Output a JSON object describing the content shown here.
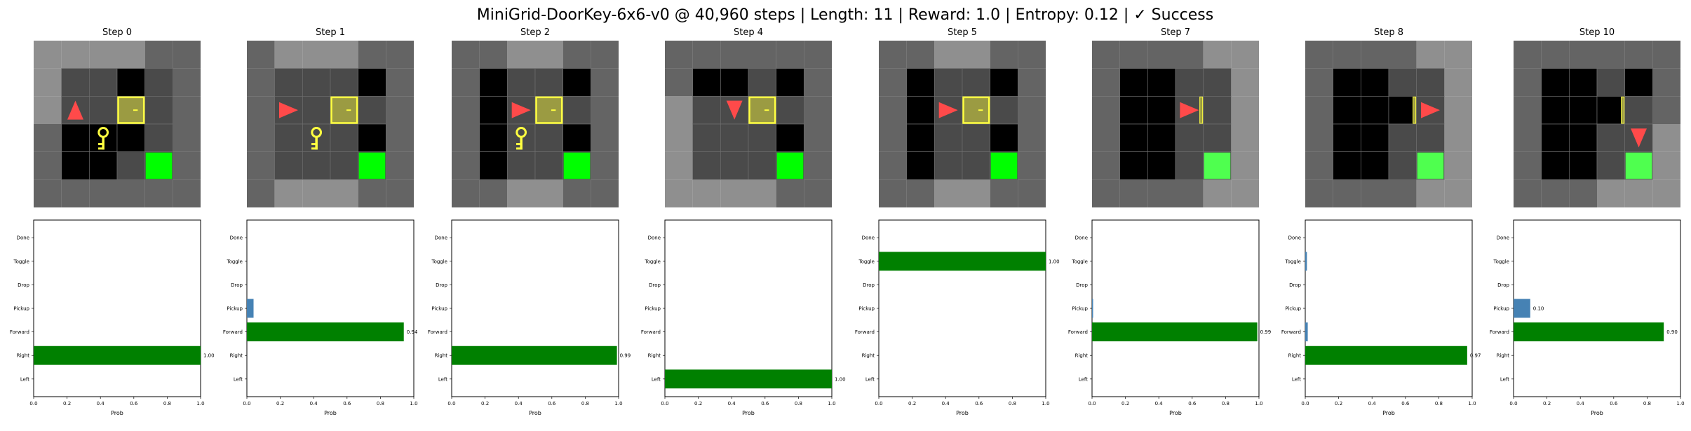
{
  "figure": {
    "title": "MiniGrid-DoorKey-6x6-v0 @ 40,960 steps | Length: 11 | Reward: 1.0 | Entropy: 0.12 | ✓ Success"
  },
  "colors": {
    "wall": "#646464",
    "floor_visible": "#8f8f8f",
    "floor_dark": "#000000",
    "floor_tile": "#4a4a4a",
    "goal": "#00ff00",
    "goal_dim": "#4fff4f",
    "door": "#9b9b42",
    "door_border": "#ffff40",
    "key": "#ffff40",
    "agent": "#ff4a4a",
    "chosen_bar": "#008000",
    "other_bar": "#4682b4"
  },
  "chart_data": [
    {
      "type": "bar",
      "orientation": "horizontal",
      "panel_title": "Step 0",
      "categories": [
        "Left",
        "Right",
        "Forward",
        "Pickup",
        "Drop",
        "Toggle",
        "Done"
      ],
      "values": [
        0,
        1.0,
        0,
        0,
        0,
        0,
        0
      ],
      "chosen": "Right",
      "value_labels": [
        {
          "category": "Right",
          "text": "1.00"
        }
      ],
      "xlabel": "Prob",
      "xlim": [
        0,
        1
      ],
      "xticks": [
        "0.0",
        "0.2",
        "0.4",
        "0.6",
        "0.8",
        "1.0"
      ],
      "grid": {
        "walls": [
          [
            0,
            0
          ],
          [
            1,
            0
          ],
          [
            2,
            0
          ],
          [
            3,
            0
          ],
          [
            4,
            0
          ],
          [
            5,
            0
          ],
          [
            0,
            1
          ],
          [
            5,
            1
          ],
          [
            0,
            2
          ],
          [
            5,
            2
          ],
          [
            0,
            3
          ],
          [
            5,
            3
          ],
          [
            0,
            4
          ],
          [
            5,
            4
          ],
          [
            0,
            5
          ],
          [
            1,
            5
          ],
          [
            2,
            5
          ],
          [
            3,
            5
          ],
          [
            4,
            5
          ],
          [
            5,
            5
          ]
        ],
        "dark": [
          [
            3,
            1
          ],
          [
            3,
            3
          ],
          [
            1,
            3
          ],
          [
            2,
            3
          ],
          [
            1,
            4
          ],
          [
            2,
            4
          ]
        ],
        "visible": [
          [
            0,
            0
          ],
          [
            1,
            0
          ],
          [
            2,
            0
          ],
          [
            3,
            0
          ],
          [
            0,
            1
          ],
          [
            1,
            1
          ],
          [
            2,
            1
          ],
          [
            3,
            1
          ],
          [
            0,
            2
          ],
          [
            1,
            2
          ],
          [
            2,
            2
          ],
          [
            3,
            2
          ],
          [
            4,
            2
          ]
        ],
        "door": [
          3,
          2
        ],
        "key": [
          2,
          3
        ],
        "goal": [
          4,
          4
        ],
        "agent": {
          "cell": [
            1,
            2
          ],
          "dir": "up"
        }
      }
    },
    {
      "type": "bar",
      "orientation": "horizontal",
      "panel_title": "Step 1",
      "categories": [
        "Left",
        "Right",
        "Forward",
        "Pickup",
        "Drop",
        "Toggle",
        "Done"
      ],
      "values": [
        0,
        0,
        0.94,
        0.04,
        0,
        0,
        0
      ],
      "chosen": "Forward",
      "value_labels": [
        {
          "category": "Forward",
          "text": "0.94"
        }
      ],
      "xlabel": "Prob",
      "xlim": [
        0,
        1
      ],
      "xticks": [
        "0.0",
        "0.2",
        "0.4",
        "0.6",
        "0.8",
        "1.0"
      ],
      "grid": {
        "dark": [
          [
            4,
            1
          ],
          [
            4,
            3
          ]
        ],
        "visible": [
          [
            1,
            0
          ],
          [
            2,
            0
          ],
          [
            3,
            0
          ],
          [
            1,
            1
          ],
          [
            2,
            1
          ],
          [
            3,
            1
          ],
          [
            1,
            2
          ],
          [
            2,
            2
          ],
          [
            3,
            2
          ],
          [
            4,
            2
          ],
          [
            1,
            3
          ],
          [
            2,
            3
          ],
          [
            3,
            3
          ],
          [
            1,
            4
          ],
          [
            2,
            4
          ],
          [
            3,
            4
          ],
          [
            1,
            5
          ],
          [
            2,
            5
          ],
          [
            3,
            5
          ]
        ],
        "door": [
          3,
          2
        ],
        "key": [
          2,
          3
        ],
        "goal": [
          4,
          4
        ],
        "agent": {
          "cell": [
            1,
            2
          ],
          "dir": "right"
        }
      }
    },
    {
      "type": "bar",
      "orientation": "horizontal",
      "panel_title": "Step 2",
      "categories": [
        "Left",
        "Right",
        "Forward",
        "Pickup",
        "Drop",
        "Toggle",
        "Done"
      ],
      "values": [
        0,
        0.99,
        0,
        0,
        0,
        0,
        0
      ],
      "chosen": "Right",
      "value_labels": [
        {
          "category": "Right",
          "text": "0.99"
        }
      ],
      "xlabel": "Prob",
      "xlim": [
        0,
        1
      ],
      "xticks": [
        "0.0",
        "0.2",
        "0.4",
        "0.6",
        "0.8",
        "1.0"
      ],
      "grid": {
        "dark": [
          [
            1,
            1
          ],
          [
            1,
            2
          ],
          [
            1,
            3
          ],
          [
            1,
            4
          ],
          [
            4,
            1
          ],
          [
            4,
            3
          ]
        ],
        "visible": [
          [
            2,
            0
          ],
          [
            3,
            0
          ],
          [
            2,
            1
          ],
          [
            3,
            1
          ],
          [
            2,
            2
          ],
          [
            3,
            2
          ],
          [
            4,
            2
          ],
          [
            2,
            3
          ],
          [
            3,
            3
          ],
          [
            2,
            4
          ],
          [
            3,
            4
          ],
          [
            2,
            5
          ],
          [
            3,
            5
          ]
        ],
        "door": [
          3,
          2
        ],
        "key": [
          2,
          3
        ],
        "goal": [
          4,
          4
        ],
        "agent": {
          "cell": [
            2,
            2
          ],
          "dir": "right"
        }
      }
    },
    {
      "type": "bar",
      "orientation": "horizontal",
      "panel_title": "Step 4",
      "categories": [
        "Left",
        "Right",
        "Forward",
        "Pickup",
        "Drop",
        "Toggle",
        "Done"
      ],
      "values": [
        1.0,
        0,
        0,
        0,
        0,
        0,
        0
      ],
      "chosen": "Left",
      "value_labels": [
        {
          "category": "Left",
          "text": "1.00"
        }
      ],
      "xlabel": "Prob",
      "xlim": [
        0,
        1
      ],
      "xticks": [
        "0.0",
        "0.2",
        "0.4",
        "0.6",
        "0.8",
        "1.0"
      ],
      "grid": {
        "dark": [
          [
            1,
            1
          ],
          [
            2,
            1
          ],
          [
            4,
            1
          ],
          [
            4,
            3
          ]
        ],
        "visible": [
          [
            0,
            2
          ],
          [
            1,
            2
          ],
          [
            2,
            2
          ],
          [
            3,
            2
          ],
          [
            4,
            2
          ],
          [
            0,
            3
          ],
          [
            1,
            3
          ],
          [
            2,
            3
          ],
          [
            3,
            3
          ],
          [
            0,
            4
          ],
          [
            1,
            4
          ],
          [
            2,
            4
          ],
          [
            3,
            4
          ],
          [
            0,
            5
          ],
          [
            1,
            5
          ],
          [
            2,
            5
          ],
          [
            3,
            5
          ]
        ],
        "door": [
          3,
          2
        ],
        "key": null,
        "goal": [
          4,
          4
        ],
        "agent": {
          "cell": [
            2,
            2
          ],
          "dir": "down"
        }
      }
    },
    {
      "type": "bar",
      "orientation": "horizontal",
      "panel_title": "Step 5",
      "categories": [
        "Left",
        "Right",
        "Forward",
        "Pickup",
        "Drop",
        "Toggle",
        "Done"
      ],
      "values": [
        0,
        0,
        0,
        0,
        0,
        1.0,
        0
      ],
      "chosen": "Toggle",
      "value_labels": [
        {
          "category": "Toggle",
          "text": "1.00"
        }
      ],
      "xlabel": "Prob",
      "xlim": [
        0,
        1
      ],
      "xticks": [
        "0.0",
        "0.2",
        "0.4",
        "0.6",
        "0.8",
        "1.0"
      ],
      "grid": {
        "dark": [
          [
            1,
            1
          ],
          [
            1,
            2
          ],
          [
            1,
            3
          ],
          [
            1,
            4
          ],
          [
            4,
            1
          ],
          [
            4,
            3
          ]
        ],
        "visible": [
          [
            2,
            0
          ],
          [
            3,
            0
          ],
          [
            2,
            1
          ],
          [
            3,
            1
          ],
          [
            2,
            2
          ],
          [
            3,
            2
          ],
          [
            4,
            2
          ],
          [
            2,
            3
          ],
          [
            3,
            3
          ],
          [
            2,
            4
          ],
          [
            3,
            4
          ],
          [
            2,
            5
          ],
          [
            3,
            5
          ]
        ],
        "door": [
          3,
          2
        ],
        "key": null,
        "goal": [
          4,
          4
        ],
        "agent": {
          "cell": [
            2,
            2
          ],
          "dir": "right"
        }
      }
    },
    {
      "type": "bar",
      "orientation": "horizontal",
      "panel_title": "Step 7",
      "categories": [
        "Left",
        "Right",
        "Forward",
        "Pickup",
        "Drop",
        "Toggle",
        "Done"
      ],
      "values": [
        0,
        0,
        0.99,
        0.005,
        0,
        0,
        0
      ],
      "chosen": "Forward",
      "value_labels": [
        {
          "category": "Forward",
          "text": "0.99"
        }
      ],
      "xlabel": "Prob",
      "xlim": [
        0,
        1
      ],
      "xticks": [
        "0.0",
        "0.2",
        "0.4",
        "0.6",
        "0.8",
        "1.0"
      ],
      "grid": {
        "dark": [
          [
            1,
            1
          ],
          [
            2,
            1
          ],
          [
            1,
            2
          ],
          [
            2,
            2
          ],
          [
            1,
            3
          ],
          [
            2,
            3
          ],
          [
            1,
            4
          ],
          [
            2,
            4
          ]
        ],
        "visible": [
          [
            4,
            0
          ],
          [
            5,
            0
          ],
          [
            3,
            1
          ],
          [
            4,
            1
          ],
          [
            5,
            1
          ],
          [
            3,
            2
          ],
          [
            4,
            2
          ],
          [
            5,
            2
          ],
          [
            3,
            3
          ],
          [
            4,
            3
          ],
          [
            5,
            3
          ],
          [
            4,
            4
          ],
          [
            5,
            4
          ],
          [
            4,
            5
          ],
          [
            5,
            5
          ]
        ],
        "door": [
          3,
          2
        ],
        "door_open": true,
        "key": null,
        "goal": [
          4,
          4
        ],
        "agent": {
          "cell": [
            3,
            2
          ],
          "dir": "right"
        }
      }
    },
    {
      "type": "bar",
      "orientation": "horizontal",
      "panel_title": "Step 8",
      "categories": [
        "Left",
        "Right",
        "Forward",
        "Pickup",
        "Drop",
        "Toggle",
        "Done"
      ],
      "values": [
        0,
        0.97,
        0.015,
        0,
        0,
        0.01,
        0
      ],
      "chosen": "Right",
      "value_labels": [
        {
          "category": "Right",
          "text": "0.97"
        }
      ],
      "xlabel": "Prob",
      "xlim": [
        0,
        1
      ],
      "xticks": [
        "0.0",
        "0.2",
        "0.4",
        "0.6",
        "0.8",
        "1.0"
      ],
      "grid": {
        "dark": [
          [
            1,
            1
          ],
          [
            2,
            1
          ],
          [
            1,
            2
          ],
          [
            2,
            2
          ],
          [
            3,
            2
          ],
          [
            1,
            3
          ],
          [
            2,
            3
          ],
          [
            1,
            4
          ],
          [
            2,
            4
          ]
        ],
        "visible": [
          [
            4,
            0
          ],
          [
            5,
            0
          ],
          [
            4,
            1
          ],
          [
            5,
            1
          ],
          [
            4,
            2
          ],
          [
            5,
            2
          ],
          [
            4,
            3
          ],
          [
            5,
            3
          ],
          [
            4,
            4
          ],
          [
            5,
            4
          ],
          [
            4,
            5
          ],
          [
            5,
            5
          ]
        ],
        "door": [
          3,
          2
        ],
        "door_open": true,
        "key": null,
        "goal": [
          4,
          4
        ],
        "agent": {
          "cell": [
            4,
            2
          ],
          "dir": "right"
        }
      }
    },
    {
      "type": "bar",
      "orientation": "horizontal",
      "panel_title": "Step 10",
      "categories": [
        "Left",
        "Right",
        "Forward",
        "Pickup",
        "Drop",
        "Toggle",
        "Done"
      ],
      "values": [
        0,
        0,
        0.9,
        0.1,
        0,
        0,
        0
      ],
      "chosen": "Forward",
      "value_labels": [
        {
          "category": "Pickup",
          "text": "0.10"
        },
        {
          "category": "Forward",
          "text": "0.90"
        }
      ],
      "xlabel": "Prob",
      "xlim": [
        0,
        1
      ],
      "xticks": [
        "0.0",
        "0.2",
        "0.4",
        "0.6",
        "0.8",
        "1.0"
      ],
      "grid": {
        "dark": [
          [
            1,
            1
          ],
          [
            2,
            1
          ],
          [
            4,
            1
          ],
          [
            1,
            2
          ],
          [
            2,
            2
          ],
          [
            3,
            2
          ],
          [
            1,
            3
          ],
          [
            2,
            3
          ],
          [
            1,
            4
          ],
          [
            2,
            4
          ]
        ],
        "visible": [
          [
            3,
            3
          ],
          [
            4,
            3
          ],
          [
            5,
            3
          ],
          [
            3,
            4
          ],
          [
            4,
            4
          ],
          [
            5,
            4
          ],
          [
            3,
            5
          ],
          [
            4,
            5
          ],
          [
            5,
            5
          ]
        ],
        "door": [
          3,
          2
        ],
        "door_open": true,
        "key": null,
        "goal": [
          4,
          4
        ],
        "agent": {
          "cell": [
            4,
            3
          ],
          "dir": "down"
        }
      }
    }
  ]
}
